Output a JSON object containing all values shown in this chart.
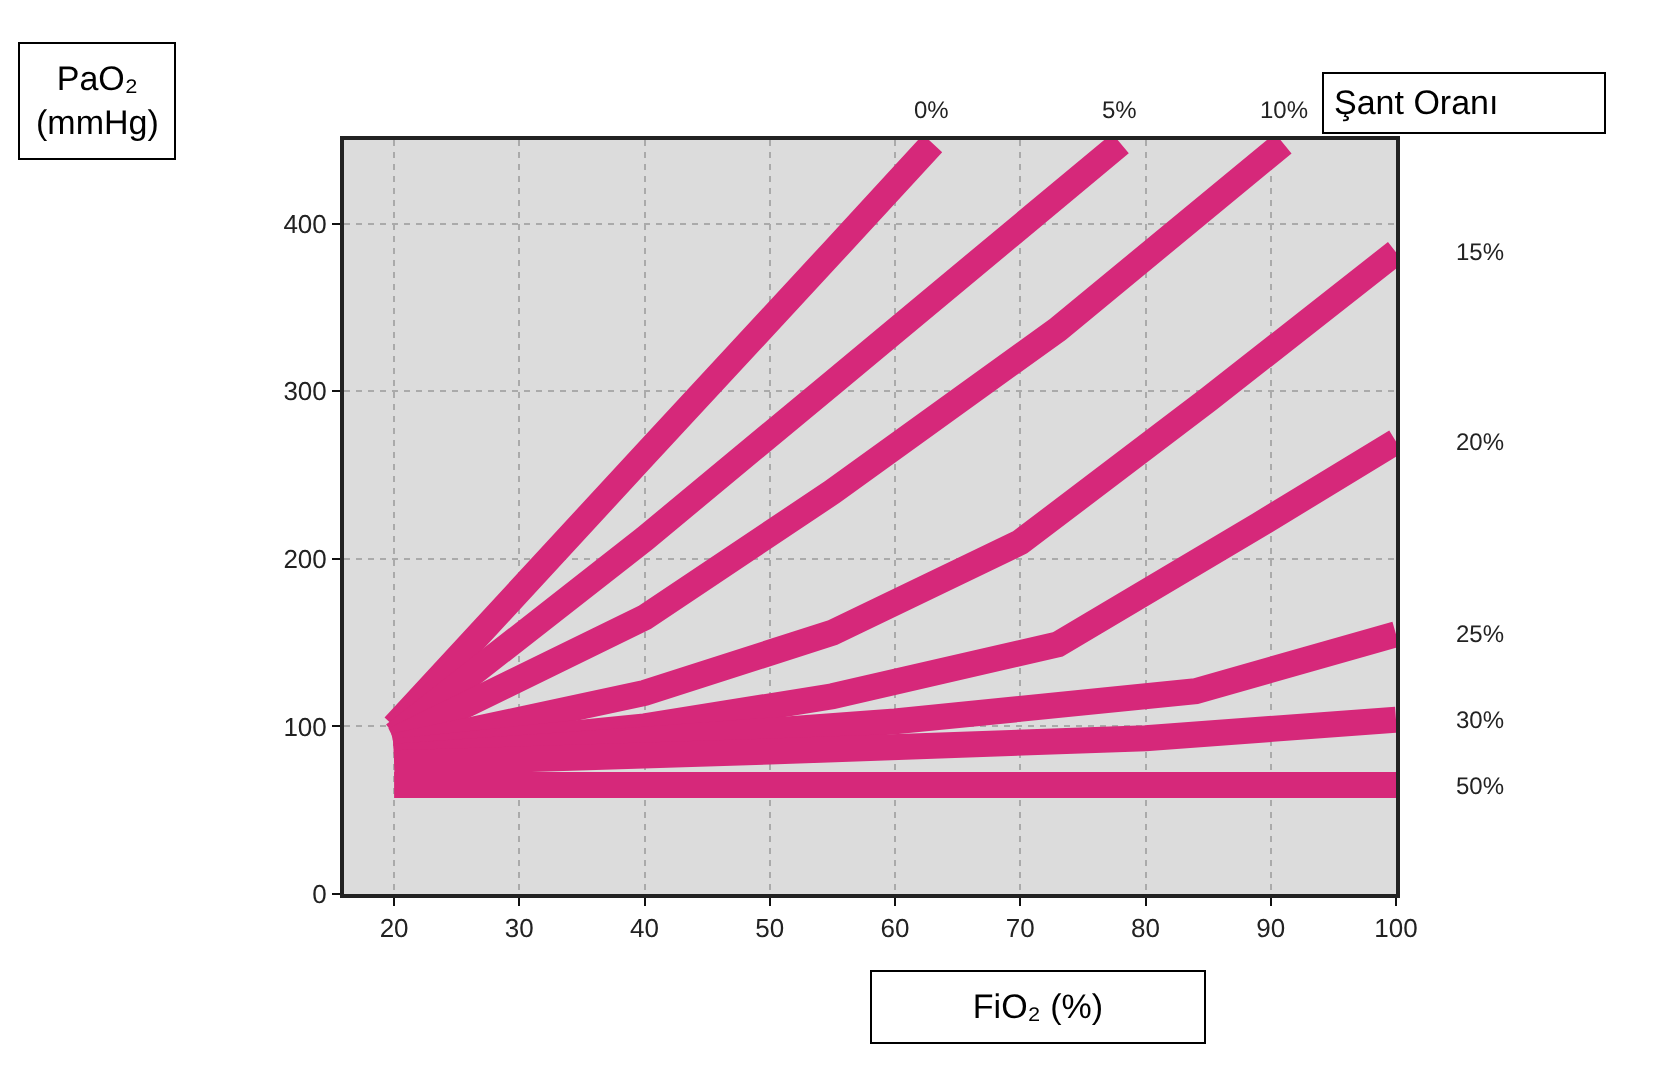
{
  "chart_data": {
    "type": "line",
    "xlabel": "FiO₂ (%)",
    "ylabel": "PaO₂\n(mmHg)",
    "legend_title": "Şant Oranı",
    "xlim": [
      16,
      100
    ],
    "xticks": [
      20,
      30,
      40,
      50,
      60,
      70,
      80,
      90,
      100
    ],
    "ylim": [
      0,
      450
    ],
    "yticks": [
      0,
      100,
      200,
      300,
      400
    ],
    "grid": true,
    "legend": false,
    "marker": "none",
    "line_style": "solid",
    "series": [
      {
        "name": "0%",
        "color": "#d6287a",
        "x": [
          20,
          40,
          55,
          63
        ],
        "values": [
          100,
          262,
          383,
          448
        ]
      },
      {
        "name": "5%",
        "color": "#d6287a",
        "x": [
          20,
          40,
          55,
          78
        ],
        "values": [
          95,
          212,
          305,
          448
        ]
      },
      {
        "name": "10%",
        "color": "#d6287a",
        "x": [
          20,
          40,
          55,
          73,
          91
        ],
        "values": [
          92,
          165,
          240,
          337,
          448
        ]
      },
      {
        "name": "15%",
        "color": "#d6287a",
        "x": [
          20,
          40,
          55,
          70,
          85,
          100
        ],
        "values": [
          88,
          120,
          156,
          210,
          295,
          383
        ]
      },
      {
        "name": "20%",
        "color": "#d6287a",
        "x": [
          20,
          40,
          55,
          73,
          89,
          100
        ],
        "values": [
          85,
          100,
          118,
          149,
          220,
          270
        ]
      },
      {
        "name": "25%",
        "color": "#d6287a",
        "x": [
          20,
          40,
          60,
          84,
          100
        ],
        "values": [
          82,
          92,
          103,
          121,
          155
        ]
      },
      {
        "name": "30%",
        "color": "#d6287a",
        "x": [
          20,
          50,
          80,
          100
        ],
        "values": [
          78,
          85,
          93,
          104
        ]
      },
      {
        "name": "50%",
        "color": "#d6287a",
        "x": [
          20,
          60,
          100
        ],
        "values": [
          65,
          65,
          65
        ]
      }
    ]
  }
}
